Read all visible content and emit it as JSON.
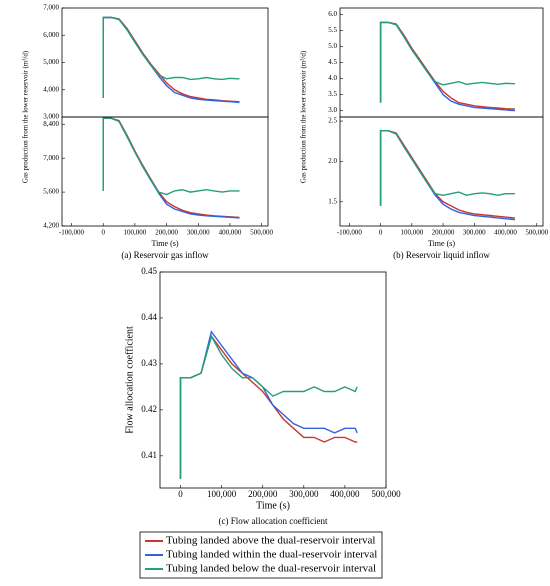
{
  "chart_data": [
    {
      "type": "line",
      "caption": "(a) Reservoir gas inflow",
      "xlabel": "Time (s)",
      "ylabel": "Gas production from the lower reservoir (m³/d)",
      "x": [
        0,
        0,
        25000,
        50000,
        75000,
        100000,
        125000,
        150000,
        175000,
        200000,
        225000,
        250000,
        275000,
        300000,
        325000,
        350000,
        375000,
        400000,
        425000,
        430000
      ],
      "xlim": [
        -130000,
        520000
      ],
      "xticks": [
        {
          "value": -100000,
          "label": "-100,000"
        },
        0,
        {
          "value": 100000,
          "label": "100,000"
        },
        {
          "value": 200000,
          "label": "200,000"
        },
        {
          "value": 300000,
          "label": "300,000"
        },
        {
          "value": 400000,
          "label": "400,000"
        },
        {
          "value": 500000,
          "label": "500,000"
        }
      ],
      "panels": [
        {
          "ylim": [
            3000,
            7000
          ],
          "yticks": [
            {
              "value": 3000,
              "label": "3,000"
            },
            {
              "value": 4000,
              "label": "4,000"
            },
            {
              "value": 5000,
              "label": "5,000"
            },
            {
              "value": 6000,
              "label": "6,000"
            },
            {
              "value": 7000,
              "label": "7,000"
            }
          ],
          "series": [
            {
              "values": [
                3700,
                6650,
                6650,
                6600,
                6250,
                5800,
                5350,
                4950,
                4600,
                4250,
                4000,
                3850,
                3750,
                3700,
                3650,
                3630,
                3600,
                3580,
                3560,
                3550
              ]
            },
            {
              "values": [
                3700,
                6650,
                6650,
                6580,
                6200,
                5750,
                5300,
                4900,
                4500,
                4150,
                3900,
                3800,
                3700,
                3650,
                3620,
                3600,
                3580,
                3560,
                3540,
                3530
              ]
            },
            {
              "values": [
                3700,
                6650,
                6650,
                6580,
                6200,
                5750,
                5300,
                4900,
                4550,
                4400,
                4450,
                4450,
                4380,
                4400,
                4450,
                4400,
                4380,
                4420,
                4400,
                4400
              ]
            }
          ]
        },
        {
          "ylim": [
            4200,
            8700
          ],
          "yticks": [
            {
              "value": 4200,
              "label": "4,200"
            },
            {
              "value": 5600,
              "label": "5,600"
            },
            {
              "value": 7000,
              "label": "7,000"
            },
            {
              "value": 8400,
              "label": "8,400"
            }
          ],
          "series": [
            {
              "values": [
                5650,
                8650,
                8650,
                8550,
                7950,
                7300,
                6700,
                6150,
                5600,
                5200,
                5000,
                4850,
                4750,
                4700,
                4650,
                4620,
                4600,
                4580,
                4560,
                4550
              ]
            },
            {
              "values": [
                5650,
                8650,
                8650,
                8520,
                7900,
                7250,
                6650,
                6100,
                5550,
                5100,
                4900,
                4800,
                4700,
                4650,
                4620,
                4600,
                4580,
                4560,
                4540,
                4530
              ]
            },
            {
              "values": [
                5650,
                8650,
                8650,
                8520,
                7900,
                7250,
                6650,
                6100,
                5600,
                5500,
                5650,
                5700,
                5600,
                5650,
                5700,
                5650,
                5600,
                5650,
                5650,
                5650
              ]
            }
          ]
        }
      ]
    },
    {
      "type": "line",
      "caption": "(b) Reservoir liquid inflow",
      "xlabel": "Time (s)",
      "ylabel": "Gas production from the lower reservoir (m³/d)",
      "x": [
        0,
        0,
        25000,
        50000,
        75000,
        100000,
        125000,
        150000,
        175000,
        200000,
        225000,
        250000,
        275000,
        300000,
        325000,
        350000,
        375000,
        400000,
        425000,
        430000
      ],
      "xlim": [
        -130000,
        520000
      ],
      "xticks": [
        {
          "value": -100000,
          "label": "-100,000"
        },
        0,
        {
          "value": 100000,
          "label": "100,000"
        },
        {
          "value": 200000,
          "label": "200,000"
        },
        {
          "value": 300000,
          "label": "300,000"
        },
        {
          "value": 400000,
          "label": "400,000"
        },
        {
          "value": 500000,
          "label": "500,000"
        }
      ],
      "panels": [
        {
          "ylim": [
            2.8,
            6.2
          ],
          "yticks": [
            {
              "value": 3,
              "label": "3.0"
            },
            3.5,
            {
              "value": 4,
              "label": "4.0"
            },
            4.5,
            {
              "value": 5,
              "label": "5.0"
            },
            5.5,
            {
              "value": 6,
              "label": "6.0"
            }
          ],
          "series": [
            {
              "values": [
                3.25,
                5.75,
                5.75,
                5.7,
                5.35,
                4.95,
                4.6,
                4.25,
                3.9,
                3.6,
                3.4,
                3.25,
                3.2,
                3.15,
                3.12,
                3.1,
                3.08,
                3.06,
                3.05,
                3.04
              ]
            },
            {
              "values": [
                3.25,
                5.75,
                5.75,
                5.68,
                5.3,
                4.9,
                4.55,
                4.2,
                3.85,
                3.5,
                3.3,
                3.2,
                3.15,
                3.1,
                3.08,
                3.06,
                3.04,
                3.02,
                3.0,
                3.0
              ]
            },
            {
              "values": [
                3.25,
                5.75,
                5.75,
                5.68,
                5.3,
                4.9,
                4.55,
                4.2,
                3.9,
                3.8,
                3.85,
                3.9,
                3.82,
                3.85,
                3.88,
                3.85,
                3.82,
                3.85,
                3.84,
                3.84
              ]
            }
          ]
        },
        {
          "ylim": [
            1.2,
            2.55
          ],
          "yticks": [
            1.5,
            {
              "value": 2,
              "label": "2.0"
            },
            2.5
          ],
          "series": [
            {
              "values": [
                1.45,
                2.38,
                2.38,
                2.35,
                2.2,
                2.05,
                1.9,
                1.75,
                1.6,
                1.5,
                1.45,
                1.4,
                1.37,
                1.35,
                1.34,
                1.33,
                1.32,
                1.31,
                1.3,
                1.3
              ]
            },
            {
              "values": [
                1.45,
                2.38,
                2.38,
                2.34,
                2.18,
                2.03,
                1.88,
                1.73,
                1.58,
                1.47,
                1.41,
                1.37,
                1.35,
                1.33,
                1.32,
                1.31,
                1.3,
                1.29,
                1.28,
                1.28
              ]
            },
            {
              "values": [
                1.45,
                2.38,
                2.38,
                2.34,
                2.18,
                2.03,
                1.88,
                1.73,
                1.6,
                1.58,
                1.6,
                1.62,
                1.58,
                1.6,
                1.61,
                1.6,
                1.58,
                1.6,
                1.6,
                1.6
              ]
            }
          ]
        }
      ]
    },
    {
      "type": "line",
      "caption": "(c) Flow allocation coefficient",
      "xlabel": "Time (s)",
      "ylabel": "Flow allocation coefficient",
      "x": [
        0,
        0,
        25000,
        50000,
        75000,
        100000,
        125000,
        150000,
        175000,
        200000,
        225000,
        250000,
        275000,
        300000,
        325000,
        350000,
        375000,
        400000,
        425000,
        430000
      ],
      "xlim": [
        -50000,
        500000
      ],
      "xticks": [
        0,
        {
          "value": 100000,
          "label": "100,000"
        },
        {
          "value": 200000,
          "label": "200,000"
        },
        {
          "value": 300000,
          "label": "300,000"
        },
        {
          "value": 400000,
          "label": "400,000"
        },
        {
          "value": 500000,
          "label": "500,000"
        }
      ],
      "panels": [
        {
          "ylim": [
            0.403,
            0.45
          ],
          "yticks": [
            0.41,
            0.42,
            0.43,
            0.44,
            0.45
          ],
          "series": [
            {
              "values": [
                0.405,
                0.427,
                0.427,
                0.428,
                0.436,
                0.433,
                0.43,
                0.428,
                0.426,
                0.424,
                0.421,
                0.418,
                0.416,
                0.414,
                0.414,
                0.413,
                0.414,
                0.414,
                0.413,
                0.413
              ]
            },
            {
              "values": [
                0.405,
                0.427,
                0.427,
                0.428,
                0.437,
                0.434,
                0.431,
                0.428,
                0.427,
                0.425,
                0.421,
                0.419,
                0.417,
                0.416,
                0.416,
                0.416,
                0.415,
                0.416,
                0.416,
                0.415
              ]
            },
            {
              "values": [
                0.405,
                0.427,
                0.427,
                0.428,
                0.436,
                0.432,
                0.429,
                0.427,
                0.427,
                0.425,
                0.423,
                0.424,
                0.424,
                0.424,
                0.425,
                0.424,
                0.424,
                0.425,
                0.424,
                0.425
              ]
            }
          ]
        }
      ]
    }
  ],
  "legend": {
    "entries": [
      {
        "name": "Tubing landed above the dual-reservoir interval",
        "color": "#c8372d"
      },
      {
        "name": "Tubing landed within the dual-reservoir interval",
        "color": "#3461e0"
      },
      {
        "name": "Tubing landed below the dual-reservoir interval",
        "color": "#23a07a"
      }
    ]
  }
}
